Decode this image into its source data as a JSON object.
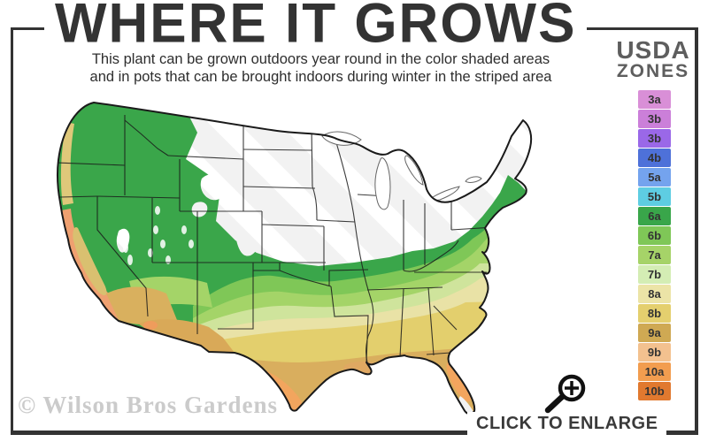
{
  "header": {
    "title": "WHERE IT GROWS",
    "subtitle_line1": "This plant can be grown outdoors year round in the color shaded areas",
    "subtitle_line2": "and in pots that can be brought indoors during winter in the striped area"
  },
  "legend": {
    "title_line1": "USDA",
    "title_line2": "ZONES",
    "zones": [
      {
        "label": "3a",
        "color": "#d98fd7"
      },
      {
        "label": "3b",
        "color": "#cb7fd9"
      },
      {
        "label": "3b",
        "color": "#9a68e8"
      },
      {
        "label": "4b",
        "color": "#4e71d9"
      },
      {
        "label": "5a",
        "color": "#74a3ee"
      },
      {
        "label": "5b",
        "color": "#5ecde2"
      },
      {
        "label": "6a",
        "color": "#39a64a"
      },
      {
        "label": "6b",
        "color": "#7fc757"
      },
      {
        "label": "7a",
        "color": "#a6d368"
      },
      {
        "label": "7b",
        "color": "#d4edb4"
      },
      {
        "label": "8a",
        "color": "#ece4a7"
      },
      {
        "label": "8b",
        "color": "#e4cf6e"
      },
      {
        "label": "9a",
        "color": "#cfa953"
      },
      {
        "label": "9b",
        "color": "#f3c18f"
      },
      {
        "label": "10a",
        "color": "#f29d4f"
      },
      {
        "label": "10b",
        "color": "#e1792f"
      }
    ]
  },
  "map_colors": {
    "hardy_green": "#3aa64a",
    "green_mid": "#7fc757",
    "green_light": "#a4d468",
    "green_pale": "#cfe49c",
    "yellow_pale": "#e9e2a6",
    "yellow": "#e3cf6d",
    "gold": "#d9ae5e",
    "peach": "#f3c18f",
    "orange": "#f2a55e",
    "coast_orange": "#efa070",
    "coast_yellow": "#dfc87a",
    "valley_khaki": "#d9c070",
    "desert_gold": "#d9b05e",
    "az_gold": "#d9a958",
    "delta_tan": "#dfa763",
    "stripe_base": "#f2f2f2",
    "stripe_band": "#ffffff"
  },
  "footer": {
    "watermark": "© Wilson Bros Gardens",
    "enlarge_label": "CLICK TO ENLARGE",
    "magnifier_icon": "magnifying-glass-plus"
  }
}
